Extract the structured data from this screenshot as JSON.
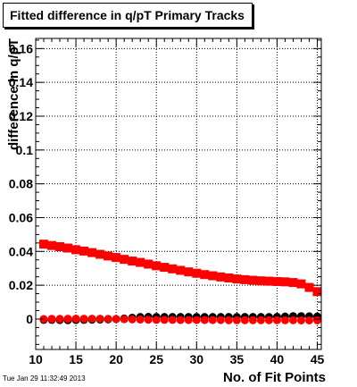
{
  "canvas_title": "Fitted difference in q/pT Primary Tracks",
  "timestamp": "Tue Jan 29 11:32:49 2013",
  "chart_data": {
    "type": "scatter",
    "title": "Fitted difference in q/pT Primary Tracks",
    "xlabel": "No. of Fit Points",
    "ylabel": "difference in q/pT",
    "xlim": [
      10,
      45.5
    ],
    "ylim": [
      -0.018,
      0.166
    ],
    "grid": true,
    "x_ticks": [
      "10",
      "15",
      "20",
      "25",
      "30",
      "35",
      "40",
      "45"
    ],
    "y_ticks": [
      "0",
      "0.02",
      "0.04",
      "0.06",
      "0.08",
      "0.1",
      "0.12",
      "0.14",
      "0.16"
    ],
    "series": [
      {
        "color": "#ff0000",
        "marker": "square",
        "x": [
          11,
          12,
          13,
          14,
          15,
          16,
          17,
          18,
          19,
          20,
          21,
          22,
          23,
          24,
          25,
          26,
          27,
          28,
          29,
          30,
          31,
          32,
          33,
          34,
          35,
          36,
          37,
          38,
          39,
          40,
          41,
          42,
          43,
          44,
          45
        ],
        "y": [
          0.0443,
          0.0435,
          0.0428,
          0.042,
          0.041,
          0.0402,
          0.0393,
          0.0383,
          0.0373,
          0.0364,
          0.0353,
          0.0343,
          0.0335,
          0.0325,
          0.0315,
          0.0306,
          0.0297,
          0.0288,
          0.0279,
          0.0271,
          0.0263,
          0.0256,
          0.0249,
          0.0243,
          0.0237,
          0.0233,
          0.0229,
          0.0226,
          0.0224,
          0.0222,
          0.022,
          0.0216,
          0.0208,
          0.0187,
          0.0162
        ]
      },
      {
        "color": "#000000",
        "marker": "circle",
        "x": [
          11,
          12,
          13,
          14,
          15,
          16,
          17,
          18,
          19,
          20,
          21,
          22,
          23,
          24,
          25,
          26,
          27,
          28,
          29,
          30,
          31,
          32,
          33,
          34,
          35,
          36,
          37,
          38,
          39,
          40,
          41,
          42,
          43,
          44,
          45
        ],
        "y": [
          -0.0005,
          -0.0005,
          -0.0006,
          -0.0007,
          -0.0006,
          -0.0005,
          -0.0004,
          -0.0003,
          -0.0002,
          0.0,
          0.0003,
          0.0008,
          0.0012,
          0.0013,
          0.0012,
          0.0012,
          0.0012,
          0.0012,
          0.0012,
          0.0012,
          0.0012,
          0.0012,
          0.0012,
          0.0012,
          0.0012,
          0.0012,
          0.0012,
          0.0012,
          0.0012,
          0.0013,
          0.0015,
          0.0017,
          0.0017,
          0.0016,
          0.0015
        ]
      },
      {
        "color": "#ff0000",
        "marker": "circle",
        "x": [
          11,
          12,
          13,
          14,
          15,
          16,
          17,
          18,
          19,
          20,
          21,
          22,
          23,
          24,
          25,
          26,
          27,
          28,
          29,
          30,
          31,
          32,
          33,
          34,
          35,
          36,
          37,
          38,
          39,
          40,
          41,
          42,
          43,
          44,
          45
        ],
        "y": [
          0.0,
          0.0001,
          0.0001,
          0.0002,
          0.0002,
          0.0002,
          0.0002,
          0.0002,
          0.0001,
          0.0,
          -0.0001,
          -0.0002,
          -0.0003,
          -0.0004,
          -0.0005,
          -0.0005,
          -0.0005,
          -0.0006,
          -0.0006,
          -0.0006,
          -0.0006,
          -0.0006,
          -0.0006,
          -0.0007,
          -0.0007,
          -0.0007,
          -0.0007,
          -0.0007,
          -0.0007,
          -0.0007,
          -0.0007,
          -0.0007,
          -0.0008,
          -0.0008,
          -0.0008
        ]
      }
    ]
  }
}
